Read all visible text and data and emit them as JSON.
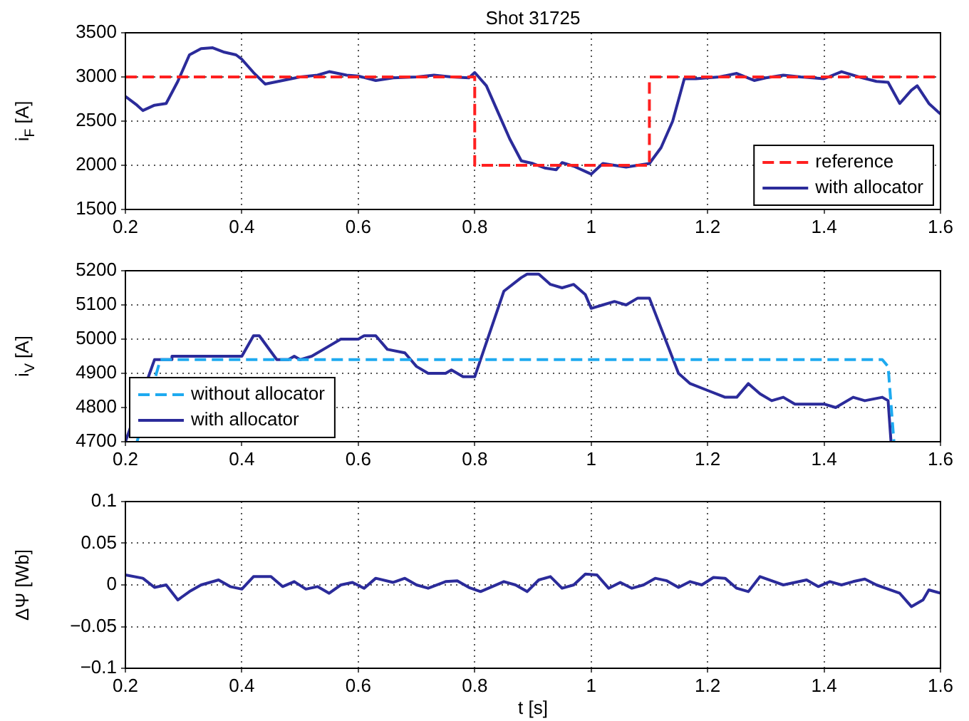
{
  "chart_data": [
    {
      "type": "line",
      "title": "Shot 31725",
      "ylabel": "i$_{F}$ [A]",
      "xlim": [
        0.2,
        1.6
      ],
      "xticks": [
        0.2,
        0.4,
        0.6,
        0.8,
        1,
        1.2,
        1.4,
        1.6
      ],
      "ylim": [
        1500,
        3500
      ],
      "yticks": [
        1500,
        2000,
        2500,
        3000,
        3500
      ],
      "grid": true,
      "legend": "bottom right",
      "marker": "none",
      "series": [
        {
          "name": "reference",
          "color": "#ff2020",
          "line_style": "dashed",
          "x": [
            0.2,
            0.8,
            0.8,
            1.1,
            1.1,
            1.6
          ],
          "values": [
            3000,
            3000,
            2000,
            2000,
            3000,
            3000
          ]
        },
        {
          "name": "with allocator",
          "color": "#2b2b9a",
          "line_style": "solid",
          "x": [
            0.2,
            0.22,
            0.23,
            0.25,
            0.27,
            0.29,
            0.31,
            0.33,
            0.35,
            0.37,
            0.39,
            0.4,
            0.42,
            0.44,
            0.47,
            0.5,
            0.53,
            0.55,
            0.58,
            0.6,
            0.63,
            0.66,
            0.7,
            0.73,
            0.76,
            0.79,
            0.8,
            0.82,
            0.84,
            0.86,
            0.88,
            0.9,
            0.92,
            0.94,
            0.95,
            0.97,
            0.99,
            1.0,
            1.02,
            1.04,
            1.06,
            1.08,
            1.1,
            1.12,
            1.14,
            1.16,
            1.18,
            1.2,
            1.22,
            1.25,
            1.28,
            1.3,
            1.33,
            1.36,
            1.4,
            1.43,
            1.46,
            1.49,
            1.51,
            1.53,
            1.55,
            1.56,
            1.58,
            1.6
          ],
          "values": [
            2780,
            2680,
            2620,
            2680,
            2700,
            2950,
            3250,
            3320,
            3330,
            3280,
            3250,
            3200,
            3050,
            2920,
            2960,
            3000,
            3020,
            3060,
            3020,
            3010,
            2960,
            2990,
            3000,
            3020,
            3000,
            2990,
            3050,
            2900,
            2600,
            2300,
            2050,
            2020,
            1970,
            1950,
            2030,
            1990,
            1930,
            1900,
            2020,
            2000,
            1980,
            2000,
            2020,
            2200,
            2500,
            2980,
            2980,
            2990,
            3000,
            3040,
            2960,
            2990,
            3020,
            3000,
            2980,
            3060,
            3000,
            2950,
            2940,
            2700,
            2850,
            2900,
            2700,
            2580
          ]
        }
      ]
    },
    {
      "type": "line",
      "ylabel": "i$_{V}$ [A]",
      "xlim": [
        0.2,
        1.6
      ],
      "xticks": [
        0.2,
        0.4,
        0.6,
        0.8,
        1,
        1.2,
        1.4,
        1.6
      ],
      "ylim": [
        4700,
        5200
      ],
      "yticks": [
        4700,
        4800,
        4900,
        5000,
        5100,
        5200
      ],
      "grid": true,
      "legend": "bottom left",
      "marker": "none",
      "series": [
        {
          "name": "without allocator",
          "color": "#1eaaf0",
          "line_style": "dashed",
          "x": [
            0.22,
            0.26,
            1.5,
            1.51,
            1.52
          ],
          "values": [
            4700,
            4940,
            4940,
            4920,
            4700
          ]
        },
        {
          "name": "with allocator",
          "color": "#2b2b9a",
          "line_style": "solid",
          "x": [
            0.2,
            0.25,
            0.28,
            0.28,
            0.4,
            0.42,
            0.43,
            0.46,
            0.48,
            0.49,
            0.5,
            0.52,
            0.55,
            0.57,
            0.6,
            0.61,
            0.63,
            0.65,
            0.68,
            0.7,
            0.72,
            0.75,
            0.76,
            0.78,
            0.8,
            0.85,
            0.88,
            0.89,
            0.91,
            0.93,
            0.95,
            0.97,
            0.99,
            1.0,
            1.02,
            1.04,
            1.06,
            1.08,
            1.1,
            1.15,
            1.17,
            1.2,
            1.23,
            1.25,
            1.27,
            1.29,
            1.31,
            1.33,
            1.35,
            1.4,
            1.42,
            1.45,
            1.47,
            1.5,
            1.51,
            1.515
          ],
          "values": [
            4700,
            4940,
            4940,
            4950,
            4950,
            5010,
            5010,
            4940,
            4940,
            4950,
            4940,
            4950,
            4980,
            5000,
            5000,
            5010,
            5010,
            4970,
            4960,
            4920,
            4900,
            4900,
            4910,
            4890,
            4890,
            5140,
            5180,
            5190,
            5190,
            5160,
            5150,
            5160,
            5130,
            5090,
            5100,
            5110,
            5100,
            5120,
            5120,
            4900,
            4870,
            4850,
            4830,
            4830,
            4870,
            4840,
            4820,
            4830,
            4810,
            4810,
            4800,
            4830,
            4820,
            4830,
            4820,
            4700
          ]
        }
      ]
    },
    {
      "type": "line",
      "ylabel": "ΔΨ [Wb]",
      "xlabel": "t [s]",
      "xlim": [
        0.2,
        1.6
      ],
      "xticks": [
        0.2,
        0.4,
        0.6,
        0.8,
        1,
        1.2,
        1.4,
        1.6
      ],
      "ylim": [
        -0.1,
        0.1
      ],
      "yticks": [
        {
          "value": -0.1,
          "label": "−0.1"
        },
        {
          "value": -0.05,
          "label": "−0.05"
        },
        0,
        0.05,
        0.1
      ],
      "grid": true,
      "marker": "none",
      "series": [
        {
          "color": "#2b2b9a",
          "line_style": "solid",
          "x": [
            0.2,
            0.23,
            0.25,
            0.27,
            0.29,
            0.31,
            0.33,
            0.36,
            0.38,
            0.4,
            0.42,
            0.45,
            0.47,
            0.49,
            0.51,
            0.53,
            0.55,
            0.57,
            0.59,
            0.61,
            0.63,
            0.66,
            0.68,
            0.7,
            0.72,
            0.75,
            0.77,
            0.79,
            0.81,
            0.83,
            0.85,
            0.87,
            0.89,
            0.91,
            0.93,
            0.95,
            0.97,
            0.99,
            1.01,
            1.03,
            1.05,
            1.07,
            1.09,
            1.11,
            1.13,
            1.15,
            1.17,
            1.19,
            1.21,
            1.23,
            1.25,
            1.27,
            1.29,
            1.31,
            1.33,
            1.35,
            1.37,
            1.39,
            1.41,
            1.43,
            1.45,
            1.47,
            1.49,
            1.51,
            1.53,
            1.55,
            1.57,
            1.58,
            1.6
          ],
          "values": [
            0.012,
            0.008,
            -0.003,
            0.0,
            -0.018,
            -0.008,
            0.0,
            0.006,
            -0.002,
            -0.005,
            0.01,
            0.01,
            -0.002,
            0.004,
            -0.005,
            -0.002,
            -0.01,
            0.0,
            0.003,
            -0.004,
            0.008,
            0.003,
            0.008,
            0.0,
            -0.004,
            0.004,
            0.005,
            -0.003,
            -0.008,
            -0.002,
            0.004,
            0.0,
            -0.008,
            0.006,
            0.01,
            -0.004,
            0.0,
            0.013,
            0.012,
            -0.004,
            0.003,
            -0.004,
            0.0,
            0.008,
            0.005,
            -0.003,
            0.004,
            0.0,
            0.009,
            0.008,
            -0.004,
            -0.008,
            0.01,
            0.005,
            0.0,
            0.003,
            0.006,
            -0.002,
            0.004,
            0.0,
            0.004,
            0.007,
            0.0,
            -0.005,
            -0.01,
            -0.026,
            -0.018,
            -0.006,
            -0.01
          ]
        }
      ]
    }
  ]
}
